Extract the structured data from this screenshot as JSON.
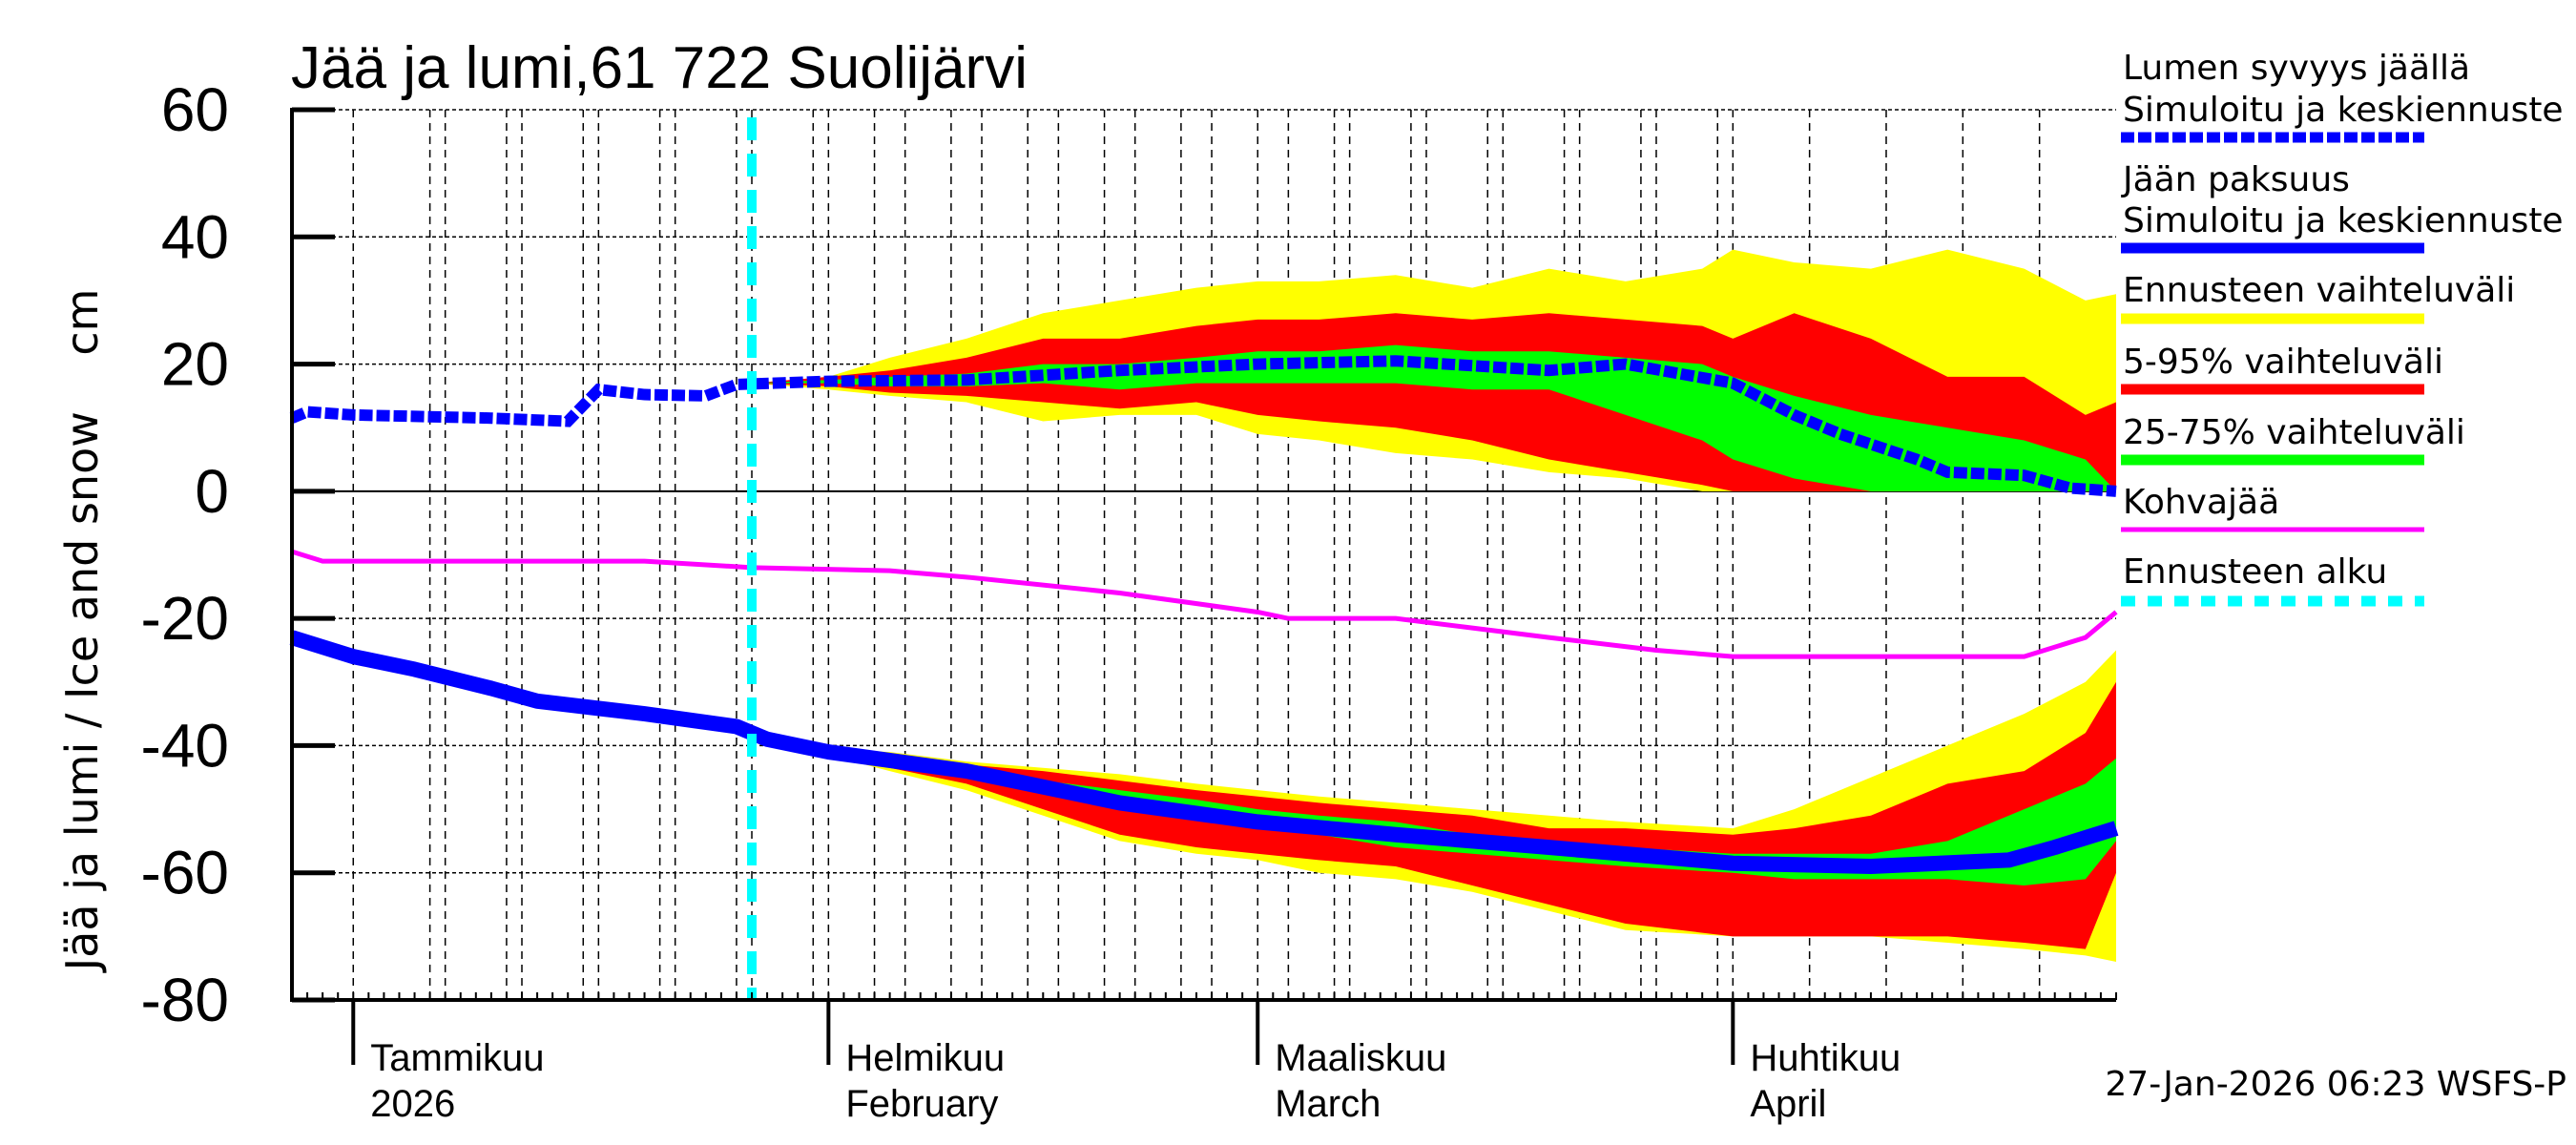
{
  "chart_data": {
    "type": "area",
    "title": "Jää ja lumi,61 722 Suolijärvi",
    "ylabel": "Jää ja lumi / Ice and snow    cm",
    "ylim": [
      -80,
      60
    ],
    "yticks": [
      "60",
      "40",
      "20",
      "0",
      "-20",
      "-40",
      "-60",
      "-80"
    ],
    "xlim": [
      "2025-12-28",
      "2026-04-26"
    ],
    "grid": true,
    "legend_position": "right",
    "months": [
      {
        "date": "2026-01-01",
        "fi": "Tammikuu",
        "en": "2026"
      },
      {
        "date": "2026-02-01",
        "fi": "Helmikuu",
        "en": "February"
      },
      {
        "date": "2026-03-01",
        "fi": "Maaliskuu",
        "en": "March"
      },
      {
        "date": "2026-04-01",
        "fi": "Huhtikuu",
        "en": "April"
      }
    ],
    "forecast_start": "2026-01-27",
    "footer": "27-Jan-2026 06:23 WSFS-P",
    "colors": {
      "snow": "#0000ff",
      "ice": "#0000ff",
      "range": "#ffff00",
      "p5_95": "#ff0000",
      "p25_75": "#00ff00",
      "slush": "#ff00ff",
      "forecast_start": "#00ffff"
    },
    "legend": [
      {
        "label1": "Lumen syvyys jäällä",
        "label2": "Simuloitu ja keskiennuste",
        "color": "#0000ff",
        "style": "dotted"
      },
      {
        "label1": "Jään paksuus",
        "label2": "Simuloitu ja keskiennuste",
        "color": "#0000ff",
        "style": "solid"
      },
      {
        "label1": "Ennusteen vaihteluväli",
        "color": "#ffff00",
        "style": "solid"
      },
      {
        "label1": "5-95% vaihteluväli",
        "color": "#ff0000",
        "style": "solid"
      },
      {
        "label1": "25-75% vaihteluväli",
        "color": "#00ff00",
        "style": "solid"
      },
      {
        "label1": "Kohvajää",
        "color": "#ff00ff",
        "style": "thin"
      },
      {
        "label1": "Ennusteen alku",
        "color": "#00ffff",
        "style": "dashed"
      }
    ],
    "snow_depth": [
      [
        "2025-12-28",
        11.5
      ],
      [
        "2025-12-29",
        12.5
      ],
      [
        "2026-01-01",
        12
      ],
      [
        "2026-01-10",
        11.5
      ],
      [
        "2026-01-15",
        11
      ],
      [
        "2026-01-17",
        16
      ],
      [
        "2026-01-20",
        15.2
      ],
      [
        "2026-01-24",
        15
      ],
      [
        "2026-01-26",
        16.8
      ],
      [
        "2026-02-01",
        17.3
      ],
      [
        "2026-02-10",
        17.5
      ],
      [
        "2026-02-20",
        19
      ],
      [
        "2026-03-01",
        20
      ],
      [
        "2026-03-10",
        20.5
      ],
      [
        "2026-03-20",
        19
      ],
      [
        "2026-03-25",
        20
      ],
      [
        "2026-04-01",
        17
      ],
      [
        "2026-04-05",
        12
      ],
      [
        "2026-04-08",
        9
      ],
      [
        "2026-04-13",
        5
      ],
      [
        "2026-04-15",
        3
      ],
      [
        "2026-04-20",
        2.5
      ],
      [
        "2026-04-23",
        0.5
      ],
      [
        "2026-04-26",
        0
      ]
    ],
    "ice_thickness": [
      [
        "2025-12-28",
        -23
      ],
      [
        "2026-01-01",
        -26
      ],
      [
        "2026-01-05",
        -28
      ],
      [
        "2026-01-10",
        -31
      ],
      [
        "2026-01-13",
        -33
      ],
      [
        "2026-01-20",
        -35
      ],
      [
        "2026-01-26",
        -37
      ],
      [
        "2026-01-28",
        -39
      ],
      [
        "2026-02-01",
        -41
      ],
      [
        "2026-02-10",
        -44
      ],
      [
        "2026-02-20",
        -49
      ],
      [
        "2026-03-01",
        -52
      ],
      [
        "2026-03-10",
        -54
      ],
      [
        "2026-03-20",
        -56
      ],
      [
        "2026-04-01",
        -58.5
      ],
      [
        "2026-04-10",
        -59
      ],
      [
        "2026-04-19",
        -58
      ],
      [
        "2026-04-22",
        -56
      ],
      [
        "2026-04-26",
        -53
      ]
    ],
    "slush_ice": [
      [
        "2025-12-28",
        -9.5
      ],
      [
        "2025-12-30",
        -11
      ],
      [
        "2026-01-20",
        -11
      ],
      [
        "2026-01-27",
        -12
      ],
      [
        "2026-02-05",
        -12.5
      ],
      [
        "2026-02-10",
        -13.5
      ],
      [
        "2026-02-20",
        -16
      ],
      [
        "2026-03-01",
        -19
      ],
      [
        "2026-03-03",
        -20
      ],
      [
        "2026-03-10",
        -20
      ],
      [
        "2026-03-15",
        -21.5
      ],
      [
        "2026-03-20",
        -23
      ],
      [
        "2026-03-27",
        -25
      ],
      [
        "2026-04-01",
        -26
      ],
      [
        "2026-04-20",
        -26
      ],
      [
        "2026-04-24",
        -23
      ],
      [
        "2026-04-26",
        -19
      ]
    ],
    "snow_bands_columns": [
      "date",
      "min",
      "p5",
      "p25",
      "p75",
      "p95",
      "max"
    ],
    "snow_bands": [
      [
        "2026-01-27",
        17,
        17,
        17,
        17,
        17,
        17
      ],
      [
        "2026-02-01",
        16,
        16.5,
        17,
        17.5,
        18,
        18
      ],
      [
        "2026-02-05",
        15,
        15.5,
        16.5,
        18,
        19,
        21
      ],
      [
        "2026-02-10",
        14,
        15,
        16.5,
        18.5,
        21,
        24
      ],
      [
        "2026-02-15",
        11,
        14,
        17,
        20,
        24,
        28
      ],
      [
        "2026-02-20",
        12,
        13,
        16,
        20,
        24,
        30
      ],
      [
        "2026-02-25",
        12,
        14,
        17,
        21,
        26,
        32
      ],
      [
        "2026-03-01",
        9,
        12,
        17,
        22,
        27,
        33
      ],
      [
        "2026-03-05",
        8,
        11,
        17,
        22,
        27,
        33
      ],
      [
        "2026-03-10",
        6,
        10,
        17,
        23,
        28,
        34
      ],
      [
        "2026-03-15",
        5,
        8,
        16,
        22,
        27,
        32
      ],
      [
        "2026-03-20",
        3,
        5,
        16,
        22,
        28,
        35
      ],
      [
        "2026-03-25",
        2,
        3,
        12,
        21,
        27,
        33
      ],
      [
        "2026-03-30",
        0,
        1,
        8,
        20,
        26,
        35
      ],
      [
        "2026-04-01",
        0,
        0,
        5,
        18,
        24,
        38
      ],
      [
        "2026-04-05",
        0,
        0,
        2,
        15,
        28,
        36
      ],
      [
        "2026-04-10",
        0,
        0,
        0,
        12,
        24,
        35
      ],
      [
        "2026-04-15",
        0,
        0,
        0,
        10,
        18,
        38
      ],
      [
        "2026-04-20",
        0,
        0,
        0,
        8,
        18,
        35
      ],
      [
        "2026-04-24",
        0,
        0,
        0,
        5,
        12,
        30
      ],
      [
        "2026-04-26",
        0,
        0,
        0,
        0,
        14,
        31
      ]
    ],
    "ice_bands_columns": [
      "date",
      "min",
      "p5",
      "p25",
      "p75",
      "p95",
      "max"
    ],
    "ice_bands": [
      [
        "2026-01-27",
        -38.5,
        -38.5,
        -38.5,
        -38.5,
        -38.5,
        -38.5
      ],
      [
        "2026-02-01",
        -41.5,
        -41.3,
        -41.1,
        -40.9,
        -40.7,
        -40.5
      ],
      [
        "2026-02-05",
        -44,
        -43.5,
        -42.5,
        -42,
        -41.5,
        -41
      ],
      [
        "2026-02-10",
        -47,
        -46,
        -45,
        -43.5,
        -43,
        -42.5
      ],
      [
        "2026-02-15",
        -51,
        -50,
        -47,
        -45.5,
        -44,
        -43.5
      ],
      [
        "2026-02-20",
        -55,
        -54,
        -49,
        -47,
        -45.5,
        -44.5
      ],
      [
        "2026-02-25",
        -57,
        -56,
        -51,
        -48.5,
        -47,
        -46
      ],
      [
        "2026-03-01",
        -58,
        -57,
        -53,
        -50,
        -48,
        -47
      ],
      [
        "2026-03-05",
        -60,
        -58,
        -54,
        -51,
        -49,
        -48
      ],
      [
        "2026-03-10",
        -61,
        -59,
        -56,
        -52,
        -50,
        -49
      ],
      [
        "2026-03-15",
        -63,
        -62,
        -57,
        -54,
        -51,
        -50
      ],
      [
        "2026-03-20",
        -66,
        -65,
        -58,
        -55,
        -53,
        -51
      ],
      [
        "2026-03-25",
        -69,
        -68,
        -59,
        -56,
        -53,
        -52
      ],
      [
        "2026-04-01",
        -70,
        -70,
        -60,
        -57,
        -54,
        -53
      ],
      [
        "2026-04-05",
        -70,
        -70,
        -61,
        -57,
        -53,
        -50
      ],
      [
        "2026-04-10",
        -70,
        -70,
        -61,
        -57,
        -51,
        -45
      ],
      [
        "2026-04-15",
        -71,
        -70,
        -61,
        -55,
        -46,
        -40
      ],
      [
        "2026-04-20",
        -72,
        -71,
        -62,
        -50,
        -44,
        -35
      ],
      [
        "2026-04-24",
        -73,
        -72,
        -61,
        -46,
        -38,
        -30
      ],
      [
        "2026-04-26",
        -74,
        -60,
        -55,
        -42,
        -30,
        -25
      ]
    ]
  }
}
